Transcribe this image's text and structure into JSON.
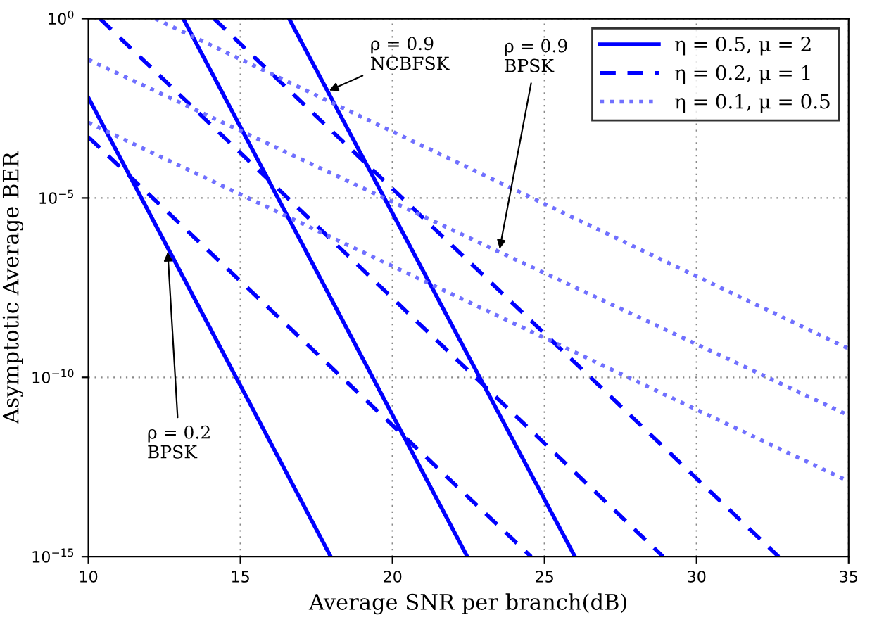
{
  "chart_data": {
    "type": "line",
    "xlabel": "Average SNR per branch(dB)",
    "ylabel": "Asymptotic Average BER",
    "log": "y",
    "xlim": [
      10,
      35
    ],
    "xticks": [
      10,
      15,
      20,
      25,
      30,
      35
    ],
    "ylim": [
      1e-15,
      1
    ],
    "yticks": [
      {
        "value": 1e-15,
        "label": "10$^{−15}$"
      },
      {
        "value": 1e-10,
        "label": "10$^{−10}$"
      },
      {
        "value": 1e-05,
        "label": "10$^{−5}$"
      },
      {
        "value": 1,
        "label": "10$^{0}$"
      }
    ],
    "grid": true,
    "legend": "top right",
    "series": [
      {
        "name": "η = 0.5, μ = 2",
        "color": "#0000ff",
        "line_style": "solid",
        "x": [
          10,
          17.97
        ],
        "values": [
          0.0063,
          1e-15
        ]
      },
      {
        "color": "#0000ff",
        "line_style": "solid",
        "x": [
          13.12,
          22.46
        ],
        "values": [
          1,
          1e-15
        ]
      },
      {
        "color": "#0000ff",
        "line_style": "solid",
        "x": [
          16.6,
          26.0
        ],
        "values": [
          1,
          1e-15
        ]
      },
      {
        "name": "η = 0.2, μ = 1",
        "color": "#0000ff",
        "line_style": "dashed",
        "x": [
          10,
          24.56
        ],
        "values": [
          0.0005,
          1e-15
        ]
      },
      {
        "color": "#0000ff",
        "line_style": "dashed",
        "x": [
          10.38,
          28.9
        ],
        "values": [
          1,
          1e-15
        ]
      },
      {
        "color": "#0000ff",
        "line_style": "dashed",
        "x": [
          14.13,
          32.7
        ],
        "values": [
          1,
          1e-15
        ]
      },
      {
        "name": "η = 0.1, μ = 0.5",
        "color": "#7070ff",
        "line_style": "dotted",
        "x": [
          10,
          35
        ],
        "values": [
          0.00126,
          1.26e-13
        ]
      },
      {
        "color": "#7070ff",
        "line_style": "dotted",
        "x": [
          10,
          35
        ],
        "values": [
          0.072,
          8.7e-12
        ]
      },
      {
        "color": "#7070ff",
        "line_style": "dotted",
        "x": [
          12.2,
          35
        ],
        "values": [
          1,
          6.3e-10
        ]
      }
    ],
    "annotations": [
      {
        "text": "ρ = 0.2\nBPSK",
        "x": 12.6,
        "y": 4e-07
      },
      {
        "text": "ρ = 0.9\nNCBFSK",
        "x": 17.8,
        "y": 0.009
      },
      {
        "text": "ρ = 0.9\nBPSK",
        "x": 23.5,
        "y": 3e-07
      }
    ]
  }
}
